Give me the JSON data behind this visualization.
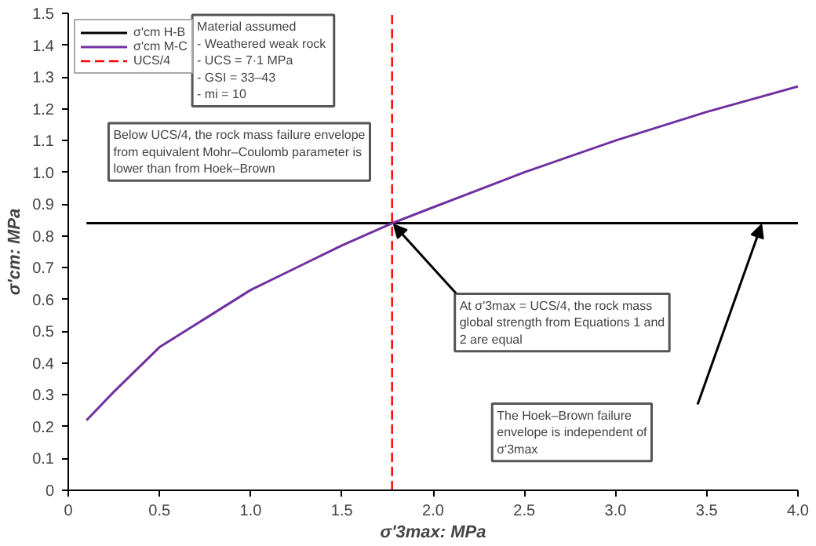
{
  "chart_data": {
    "type": "line",
    "xlabel": "σ'3max: MPa",
    "ylabel": "σ'cm: MPa",
    "xlim": [
      0,
      4.0
    ],
    "ylim": [
      0,
      1.5
    ],
    "xticks": [
      0,
      {
        "value": 0.5,
        "label": "0.5"
      },
      {
        "value": 1.0,
        "label": "1.0"
      },
      {
        "value": 1.5,
        "label": "1.5"
      },
      {
        "value": 2.0,
        "label": "2.0"
      },
      {
        "value": 2.5,
        "label": "2.5"
      },
      {
        "value": 3.0,
        "label": "3.0"
      },
      {
        "value": 3.5,
        "label": "3.5"
      },
      {
        "value": 4.0,
        "label": "4.0"
      }
    ],
    "yticks": [
      0,
      0.1,
      0.2,
      0.3,
      0.4,
      0.5,
      0.6,
      0.7,
      0.8,
      0.9,
      {
        "value": 1.0,
        "label": "1.0"
      },
      1.1,
      1.2,
      1.3,
      1.4,
      1.5
    ],
    "series": [
      {
        "name": "σ'cm H-B",
        "color": "#000000",
        "x": [
          0.1,
          4.0
        ],
        "values": [
          0.84,
          0.84
        ]
      },
      {
        "name": "σ'cm M-C",
        "color": "#7030a0",
        "x": [
          0.1,
          0.25,
          0.5,
          0.75,
          1.0,
          1.25,
          1.5,
          1.775,
          2.0,
          2.5,
          3.0,
          3.5,
          4.0
        ],
        "values": [
          0.22,
          0.31,
          0.45,
          0.54,
          0.63,
          0.7,
          0.77,
          0.84,
          0.89,
          1.0,
          1.1,
          1.19,
          1.27
        ]
      },
      {
        "name": "UCS/4",
        "color": "#ff0000",
        "line_style": "dashed",
        "x": [
          1.775,
          1.775
        ],
        "values": [
          0,
          1.5
        ]
      }
    ],
    "annotations": [
      "Material assumed\n - Weathered weak rock\n - UCS = 7·1 MPa\n - GSI = 33–43\n - mi = 10",
      "Below UCS/4, the rock mass failure envelope from equivalent Mohr–Coulomb parameter is lower than from Hoek–Brown",
      {
        "text": "At σ'3max = UCS/4, the rock mass global strength from Equations 1 and 2 are equal",
        "x": 1.775,
        "y": 0.84
      },
      "The Hoek–Brown failure envelope is independent of σ'3max"
    ],
    "legend": "top left",
    "grid": false,
    "marker": "none",
    "line_style": "solid"
  }
}
